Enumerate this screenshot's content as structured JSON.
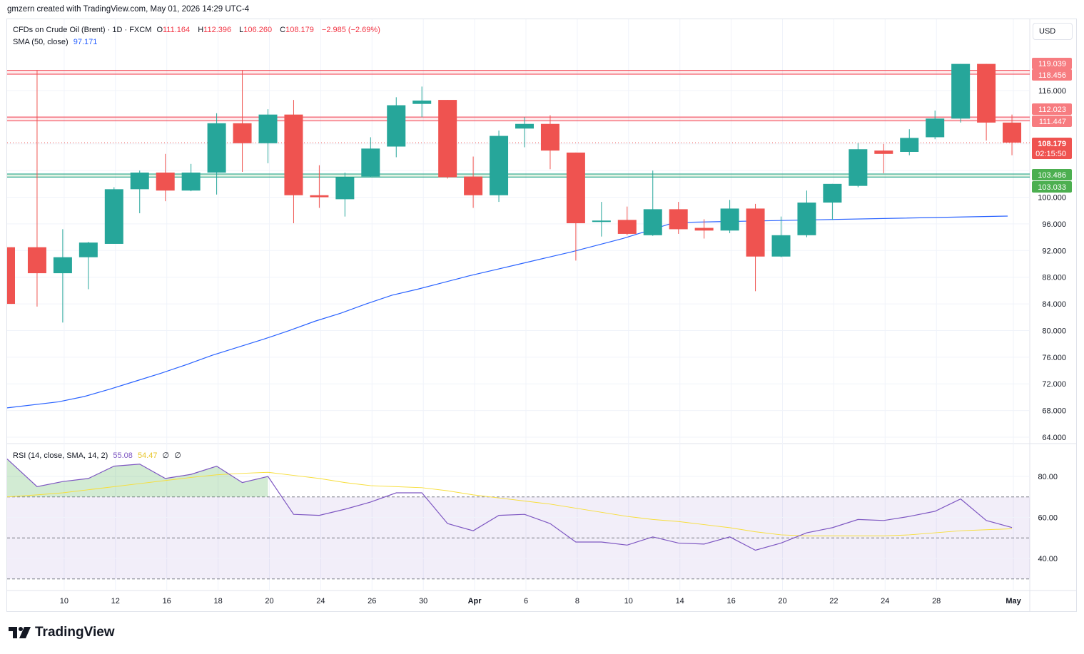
{
  "header": {
    "created_by": "gmzern created with TradingView.com, May 01, 2026 14:29 UTC-4"
  },
  "legend": {
    "symbol": "CFDs on Crude Oil (Brent) · 1D · FXCM",
    "open_label": "O",
    "open": "111.164",
    "high_label": "H",
    "high": "112.396",
    "low_label": "L",
    "low": "106.260",
    "close_label": "C",
    "close": "108.179",
    "change": "−2.985 (−2.69%)",
    "sma_label": "SMA (50, close)",
    "sma_value": "97.171",
    "rsi_label": "RSI (14, close, SMA, 14, 2)",
    "rsi_value": "55.08",
    "rsi_sma_value": "54.47",
    "rsi_extra1": "∅",
    "rsi_extra2": "∅"
  },
  "currency_button": "USD",
  "brand": "TradingView",
  "colors": {
    "up": "#26a69a",
    "down": "#ef5350",
    "sma": "#2962ff",
    "rsi": "#7e57c2",
    "rsi_sma": "#f7de3a",
    "resistance": "#f23645",
    "support": "#089981",
    "grid": "#f0f3fa"
  },
  "chart_data": [
    {
      "type": "candlestick",
      "title": "CFDs on Crude Oil (Brent) · 1D · FXCM",
      "ylim": [
        63,
        122
      ],
      "y_ticks": [
        "116.000",
        "100.000",
        "96.000",
        "92.000",
        "88.000",
        "84.000",
        "80.000",
        "76.000",
        "72.000",
        "68.000",
        "64.000"
      ],
      "x_ticks": [
        "10",
        "12",
        "16",
        "18",
        "20",
        "24",
        "26",
        "30",
        "Apr",
        "6",
        "8",
        "10",
        "14",
        "16",
        "20",
        "22",
        "24",
        "28",
        "May"
      ],
      "candles": [
        {
          "o": 92.5,
          "h": 92.5,
          "l": 84.0,
          "c": 84.0
        },
        {
          "o": 92.5,
          "h": 119.0,
          "l": 83.6,
          "c": 88.6
        },
        {
          "o": 88.6,
          "h": 95.2,
          "l": 81.2,
          "c": 91.0
        },
        {
          "o": 91.0,
          "h": 93.3,
          "l": 86.2,
          "c": 93.2
        },
        {
          "o": 93.0,
          "h": 101.5,
          "l": 93.0,
          "c": 101.2
        },
        {
          "o": 101.2,
          "h": 104.0,
          "l": 97.6,
          "c": 103.7
        },
        {
          "o": 103.7,
          "h": 106.5,
          "l": 99.4,
          "c": 101.0
        },
        {
          "o": 101.0,
          "h": 105.0,
          "l": 100.9,
          "c": 103.7
        },
        {
          "o": 103.7,
          "h": 112.6,
          "l": 100.4,
          "c": 111.1
        },
        {
          "o": 111.1,
          "h": 119.0,
          "l": 103.8,
          "c": 108.1
        },
        {
          "o": 108.1,
          "h": 113.2,
          "l": 105.1,
          "c": 112.4
        },
        {
          "o": 112.4,
          "h": 114.6,
          "l": 96.1,
          "c": 100.3
        },
        {
          "o": 100.3,
          "h": 104.8,
          "l": 98.4,
          "c": 100.0
        },
        {
          "o": 99.7,
          "h": 103.7,
          "l": 97.1,
          "c": 103.0
        },
        {
          "o": 103.1,
          "h": 109.0,
          "l": 103.0,
          "c": 107.3
        },
        {
          "o": 107.6,
          "h": 115.0,
          "l": 106.0,
          "c": 113.8
        },
        {
          "o": 114.0,
          "h": 116.6,
          "l": 112.0,
          "c": 114.5
        },
        {
          "o": 114.6,
          "h": 114.6,
          "l": 102.8,
          "c": 103.0
        },
        {
          "o": 103.1,
          "h": 106.1,
          "l": 98.4,
          "c": 100.3
        },
        {
          "o": 100.3,
          "h": 110.0,
          "l": 99.3,
          "c": 109.2
        },
        {
          "o": 110.3,
          "h": 112.0,
          "l": 107.5,
          "c": 111.0
        },
        {
          "o": 111.0,
          "h": 112.3,
          "l": 104.2,
          "c": 107.0
        },
        {
          "o": 106.7,
          "h": 106.7,
          "l": 90.5,
          "c": 96.1
        },
        {
          "o": 96.3,
          "h": 99.3,
          "l": 94.1,
          "c": 96.5
        },
        {
          "o": 96.6,
          "h": 98.6,
          "l": 94.3,
          "c": 94.5
        },
        {
          "o": 94.3,
          "h": 104.0,
          "l": 94.2,
          "c": 98.2
        },
        {
          "o": 98.2,
          "h": 99.3,
          "l": 94.5,
          "c": 95.2
        },
        {
          "o": 95.4,
          "h": 96.7,
          "l": 93.8,
          "c": 95.0
        },
        {
          "o": 95.0,
          "h": 99.6,
          "l": 94.6,
          "c": 98.3
        },
        {
          "o": 98.3,
          "h": 99.0,
          "l": 85.9,
          "c": 91.1
        },
        {
          "o": 91.1,
          "h": 97.1,
          "l": 91.0,
          "c": 94.3
        },
        {
          "o": 94.3,
          "h": 101.0,
          "l": 94.0,
          "c": 99.2
        },
        {
          "o": 99.2,
          "h": 102.0,
          "l": 96.6,
          "c": 102.0
        },
        {
          "o": 101.7,
          "h": 108.1,
          "l": 101.5,
          "c": 107.2
        },
        {
          "o": 107.0,
          "h": 108.0,
          "l": 103.6,
          "c": 106.5
        },
        {
          "o": 106.8,
          "h": 110.2,
          "l": 106.3,
          "c": 108.9
        },
        {
          "o": 109.0,
          "h": 113.0,
          "l": 108.7,
          "c": 111.8
        },
        {
          "o": 111.8,
          "h": 120.0,
          "l": 111.2,
          "c": 120.0
        },
        {
          "o": 120.0,
          "h": 120.0,
          "l": 108.5,
          "c": 111.2
        },
        {
          "o": 111.2,
          "h": 112.4,
          "l": 106.3,
          "c": 108.2
        }
      ],
      "sma": [
        68.4,
        69.3,
        70.1,
        71.2,
        72.4,
        73.6,
        74.9,
        76.3,
        77.5,
        78.7,
        80.0,
        81.4,
        82.6,
        84.0,
        85.3,
        86.2,
        87.2,
        88.2,
        89.1,
        90.0,
        90.9,
        91.8,
        92.8,
        93.8,
        95.0,
        96.2,
        97.171
      ],
      "sma_x_index": [
        0,
        2,
        3,
        4,
        5,
        6,
        7,
        8,
        9,
        10,
        11,
        12,
        13,
        14,
        15,
        16,
        17,
        18,
        19,
        20,
        21,
        22,
        23,
        24,
        25,
        26,
        39
      ],
      "price_lines": [
        {
          "label": "119.039",
          "value": 119.039,
          "color": "#f23645",
          "fill": "#f77c80"
        },
        {
          "label": "118.456",
          "value": 118.456,
          "color": "#f23645",
          "fill": "#f77c80"
        },
        {
          "label": "112.023",
          "value": 112.023,
          "color": "#f23645",
          "fill": "#f77c80"
        },
        {
          "label": "111.447",
          "value": 111.447,
          "color": "#f23645",
          "fill": "#f77c80"
        },
        {
          "label": "103.486",
          "value": 103.486,
          "color": "#089981",
          "fill": "#4caf50"
        },
        {
          "label": "103.033",
          "value": 103.033,
          "color": "#089981",
          "fill": "#4caf50"
        }
      ],
      "last_price": {
        "label": "108.179",
        "value": 108.179,
        "countdown": "02:15:50"
      }
    },
    {
      "type": "line",
      "title": "RSI (14, close, SMA, 14, 2)",
      "ylim": [
        30,
        92
      ],
      "y_ticks": [
        "80.00",
        "60.00",
        "40.00"
      ],
      "band": [
        30,
        70
      ],
      "midline": 50,
      "series": [
        {
          "name": "RSI",
          "values": [
            88.5,
            75.0,
            77.5,
            79.0,
            85.0,
            86.0,
            79.0,
            81.0,
            85.0,
            77.0,
            80.0,
            61.5,
            61.0,
            64.0,
            67.5,
            72.0,
            72.0,
            57.0,
            53.5,
            61.0,
            61.5,
            57.0,
            48.0,
            48.0,
            46.5,
            50.5,
            47.5,
            47.0,
            50.5,
            44.0,
            47.5,
            52.5,
            55.0,
            59.0,
            58.5,
            60.5,
            63.0,
            69.0,
            58.5,
            55.08
          ]
        },
        {
          "name": "RSI SMA",
          "values": [
            70.0,
            71.0,
            72.0,
            73.5,
            75.0,
            76.5,
            78.0,
            79.5,
            80.8,
            81.5,
            82.0,
            80.5,
            79.0,
            77.0,
            75.5,
            75.0,
            74.5,
            73.0,
            71.0,
            69.5,
            68.0,
            66.5,
            64.5,
            62.5,
            60.5,
            59.0,
            58.0,
            56.5,
            55.0,
            53.0,
            51.5,
            51.0,
            51.0,
            51.0,
            51.0,
            51.5,
            52.5,
            53.5,
            54.0,
            54.47
          ]
        }
      ]
    }
  ]
}
